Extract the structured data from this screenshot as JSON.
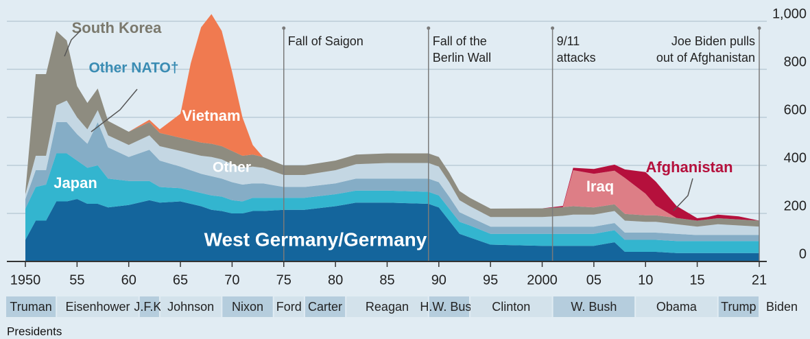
{
  "chart_data": {
    "type": "stacked_area",
    "x": [
      1950,
      1951,
      1952,
      1953,
      1954,
      1955,
      1956,
      1957,
      1958,
      1960,
      1962,
      1963,
      1965,
      1966,
      1967,
      1968,
      1969,
      1970,
      1971,
      1972,
      1973,
      1975,
      1977,
      1980,
      1982,
      1985,
      1989,
      1990,
      1991,
      1992,
      1993,
      1995,
      2000,
      2002,
      2003,
      2005,
      2007,
      2008,
      2010,
      2011,
      2013,
      2015,
      2016,
      2017,
      2019,
      2021
    ],
    "series": [
      {
        "name": "West Germany/Germany",
        "color": "#14659c",
        "label_color": "#ffffff",
        "values": [
          90,
          170,
          170,
          250,
          250,
          260,
          240,
          240,
          225,
          235,
          255,
          245,
          250,
          240,
          230,
          215,
          210,
          200,
          200,
          210,
          210,
          215,
          215,
          230,
          245,
          245,
          240,
          225,
          170,
          115,
          100,
          70,
          65,
          65,
          65,
          65,
          80,
          40,
          40,
          40,
          35,
          35,
          35,
          35,
          35,
          35
        ]
      },
      {
        "name": "Japan",
        "color": "#33b5cf",
        "label_color": "#ffffff",
        "values": [
          130,
          140,
          150,
          200,
          200,
          160,
          150,
          160,
          120,
          100,
          80,
          65,
          55,
          55,
          55,
          60,
          60,
          55,
          50,
          55,
          55,
          50,
          50,
          50,
          50,
          50,
          50,
          50,
          50,
          50,
          50,
          45,
          50,
          50,
          50,
          50,
          50,
          50,
          50,
          50,
          50,
          50,
          50,
          50,
          50,
          50
        ]
      },
      {
        "name": "Other NATO†",
        "color": "#85adc6",
        "label_color": "#3a8cb3",
        "values": [
          40,
          70,
          60,
          130,
          130,
          110,
          100,
          180,
          130,
          100,
          130,
          110,
          90,
          85,
          80,
          80,
          75,
          75,
          70,
          60,
          60,
          45,
          45,
          45,
          50,
          50,
          55,
          55,
          50,
          40,
          35,
          30,
          30,
          30,
          30,
          30,
          30,
          30,
          30,
          30,
          30,
          25,
          25,
          25,
          25,
          25
        ]
      },
      {
        "name": "Other",
        "color": "#c4d7e3",
        "label_color": "#ffffff",
        "values": [
          20,
          60,
          60,
          70,
          90,
          70,
          60,
          50,
          50,
          50,
          60,
          60,
          65,
          70,
          75,
          80,
          80,
          75,
          70,
          70,
          65,
          50,
          50,
          55,
          60,
          65,
          65,
          65,
          60,
          50,
          45,
          40,
          40,
          45,
          50,
          50,
          50,
          50,
          45,
          45,
          40,
          35,
          40,
          45,
          40,
          35
        ]
      },
      {
        "name": "South Korea",
        "color": "#8e8c80",
        "label_color": "#7b796d",
        "values": [
          10,
          340,
          340,
          310,
          250,
          130,
          110,
          90,
          60,
          55,
          55,
          55,
          55,
          55,
          55,
          55,
          55,
          55,
          50,
          50,
          45,
          40,
          40,
          40,
          40,
          40,
          40,
          40,
          40,
          38,
          35,
          35,
          36,
          36,
          35,
          30,
          28,
          28,
          27,
          27,
          26,
          25,
          25,
          25,
          25,
          25
        ]
      },
      {
        "name": "Vietnam",
        "color": "#f07a50",
        "label_color": "#ffffff",
        "values": [
          0,
          0,
          0,
          0,
          0,
          0,
          0,
          0,
          0,
          0,
          10,
          15,
          100,
          320,
          480,
          540,
          480,
          330,
          160,
          40,
          0,
          0,
          0,
          0,
          0,
          0,
          0,
          0,
          0,
          0,
          0,
          0,
          0,
          0,
          0,
          0,
          0,
          0,
          0,
          0,
          0,
          0,
          0,
          0,
          0,
          0
        ]
      },
      {
        "name": "Iraq",
        "color": "#dd7e86",
        "label_color": "#ffffff",
        "values": [
          0,
          0,
          0,
          0,
          0,
          0,
          0,
          0,
          0,
          0,
          0,
          0,
          0,
          0,
          0,
          0,
          0,
          0,
          0,
          0,
          0,
          0,
          0,
          0,
          0,
          0,
          0,
          0,
          0,
          0,
          0,
          0,
          0,
          0,
          150,
          140,
          140,
          150,
          90,
          40,
          0,
          0,
          0,
          0,
          0,
          0
        ]
      },
      {
        "name": "Afghanistan",
        "color": "#b5103c",
        "label_color": "#b5103c",
        "values": [
          0,
          0,
          0,
          0,
          0,
          0,
          0,
          0,
          0,
          0,
          0,
          0,
          0,
          0,
          0,
          0,
          0,
          0,
          0,
          0,
          0,
          0,
          0,
          0,
          0,
          0,
          0,
          0,
          0,
          0,
          0,
          0,
          0,
          5,
          10,
          20,
          25,
          35,
          90,
          100,
          50,
          10,
          10,
          15,
          13,
          0
        ]
      }
    ],
    "xlim": [
      1950,
      2021
    ],
    "xticks": [
      1950,
      {
        "value": 1955,
        "label": "55"
      },
      {
        "value": 1960,
        "label": "60"
      },
      {
        "value": 1965,
        "label": "65"
      },
      {
        "value": 1970,
        "label": "70"
      },
      {
        "value": 1975,
        "label": "75"
      },
      {
        "value": 1980,
        "label": "80"
      },
      {
        "value": 1985,
        "label": "85"
      },
      {
        "value": 1990,
        "label": "90"
      },
      {
        "value": 1995,
        "label": "95"
      },
      2000,
      {
        "value": 2005,
        "label": "05"
      },
      {
        "value": 2010,
        "label": "10"
      },
      {
        "value": 2015,
        "label": "15"
      },
      {
        "value": 2021,
        "label": "21"
      }
    ],
    "ylim": [
      0,
      1000
    ],
    "yticks": [
      0,
      200,
      400,
      600,
      800,
      {
        "value": 1000,
        "label": "1,000"
      }
    ],
    "grid": true,
    "annotations": [
      {
        "x": 1975,
        "lines": [
          "Fall of Saigon"
        ]
      },
      {
        "x": 1989,
        "lines": [
          "Fall of the",
          "Berlin Wall"
        ]
      },
      {
        "x": 2001,
        "lines": [
          "9/11",
          "attacks"
        ]
      },
      {
        "x": 2021,
        "lines": [
          "Joe Biden pulls",
          "out of Afghanistan"
        ]
      }
    ],
    "presidents_title": "Presidents",
    "presidents": [
      {
        "name": "Truman",
        "start": 1948
      },
      {
        "name": "Eisenhower",
        "start": 1953
      },
      {
        "name": "J.F.K.",
        "start": 1961
      },
      {
        "name": "Johnson",
        "start": 1963
      },
      {
        "name": "Nixon",
        "start": 1969
      },
      {
        "name": "Ford",
        "start": 1974
      },
      {
        "name": "Carter",
        "start": 1977
      },
      {
        "name": "Reagan",
        "start": 1981
      },
      {
        "name": "H.W. Bush",
        "start": 1989
      },
      {
        "name": "Clinton",
        "start": 1993
      },
      {
        "name": "W. Bush",
        "start": 2001
      },
      {
        "name": "Obama",
        "start": 2009
      },
      {
        "name": "Trump",
        "start": 2017
      },
      {
        "name": "Biden",
        "start": 2021
      }
    ]
  }
}
